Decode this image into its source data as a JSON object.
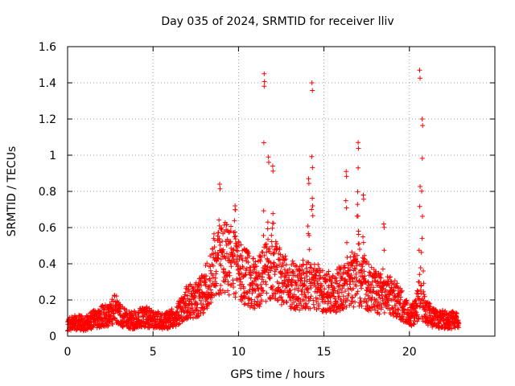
{
  "chart_data": {
    "type": "scatter",
    "title": "Day 035 of 2024, SRMTID for receiver lliv",
    "xlabel": "GPS time / hours",
    "ylabel": "SRMTID / TECUs",
    "xlim": [
      0,
      25
    ],
    "ylim": [
      0,
      1.6
    ],
    "x_ticks": [
      0,
      5,
      10,
      15,
      20
    ],
    "x_tick_labels": [
      "0",
      "5",
      "10",
      "15",
      "20"
    ],
    "y_ticks": [
      0,
      0.2,
      0.4,
      0.6,
      0.8,
      1.0,
      1.2,
      1.4,
      1.6
    ],
    "y_tick_labels": [
      "0",
      "0.2",
      "0.4",
      "0.6",
      "0.8",
      "1",
      "1.2",
      "1.4",
      "1.6"
    ],
    "grid": true,
    "marker": "plus",
    "series": [
      {
        "name": "SRMTID",
        "color": "#ff0000",
        "baseline": [
          [
            0.0,
            0.07
          ],
          [
            0.5,
            0.075
          ],
          [
            1.0,
            0.07
          ],
          [
            1.5,
            0.09
          ],
          [
            2.0,
            0.11
          ],
          [
            2.5,
            0.12
          ],
          [
            2.8,
            0.16
          ],
          [
            3.0,
            0.12
          ],
          [
            3.5,
            0.09
          ],
          [
            4.0,
            0.09
          ],
          [
            4.5,
            0.11
          ],
          [
            5.0,
            0.09
          ],
          [
            5.5,
            0.085
          ],
          [
            6.0,
            0.09
          ],
          [
            6.5,
            0.13
          ],
          [
            7.0,
            0.19
          ],
          [
            7.5,
            0.2
          ],
          [
            8.0,
            0.25
          ],
          [
            8.5,
            0.38
          ],
          [
            9.0,
            0.45
          ],
          [
            9.5,
            0.42
          ],
          [
            10.0,
            0.36
          ],
          [
            10.5,
            0.32
          ],
          [
            11.0,
            0.28
          ],
          [
            11.5,
            0.34
          ],
          [
            12.0,
            0.37
          ],
          [
            12.5,
            0.33
          ],
          [
            13.0,
            0.29
          ],
          [
            13.5,
            0.27
          ],
          [
            14.0,
            0.3
          ],
          [
            14.5,
            0.28
          ],
          [
            15.0,
            0.25
          ],
          [
            15.5,
            0.24
          ],
          [
            16.0,
            0.27
          ],
          [
            16.5,
            0.32
          ],
          [
            17.0,
            0.3
          ],
          [
            17.5,
            0.28
          ],
          [
            18.0,
            0.25
          ],
          [
            18.5,
            0.22
          ],
          [
            19.0,
            0.22
          ],
          [
            19.5,
            0.18
          ],
          [
            20.0,
            0.11
          ],
          [
            20.3,
            0.13
          ],
          [
            20.6,
            0.2
          ],
          [
            21.0,
            0.13
          ],
          [
            21.5,
            0.1
          ],
          [
            22.0,
            0.09
          ],
          [
            22.5,
            0.09
          ],
          [
            22.9,
            0.08
          ]
        ],
        "spikes": [
          {
            "x": 8.9,
            "peak": 0.84,
            "width": 0.2
          },
          {
            "x": 9.8,
            "peak": 0.72,
            "width": 0.2
          },
          {
            "x": 11.5,
            "peak": 1.45,
            "width": 0.08
          },
          {
            "x": 11.75,
            "peak": 0.99,
            "width": 0.08
          },
          {
            "x": 12.0,
            "peak": 0.94,
            "width": 0.12
          },
          {
            "x": 14.1,
            "peak": 0.87,
            "width": 0.1
          },
          {
            "x": 14.3,
            "peak": 1.4,
            "width": 0.08
          },
          {
            "x": 16.3,
            "peak": 0.91,
            "width": 0.1
          },
          {
            "x": 17.0,
            "peak": 1.07,
            "width": 0.12
          },
          {
            "x": 17.3,
            "peak": 0.78,
            "width": 0.12
          },
          {
            "x": 18.5,
            "peak": 0.62,
            "width": 0.1
          },
          {
            "x": 20.6,
            "peak": 1.47,
            "width": 0.08
          },
          {
            "x": 20.75,
            "peak": 1.2,
            "width": 0.1
          }
        ]
      }
    ]
  }
}
